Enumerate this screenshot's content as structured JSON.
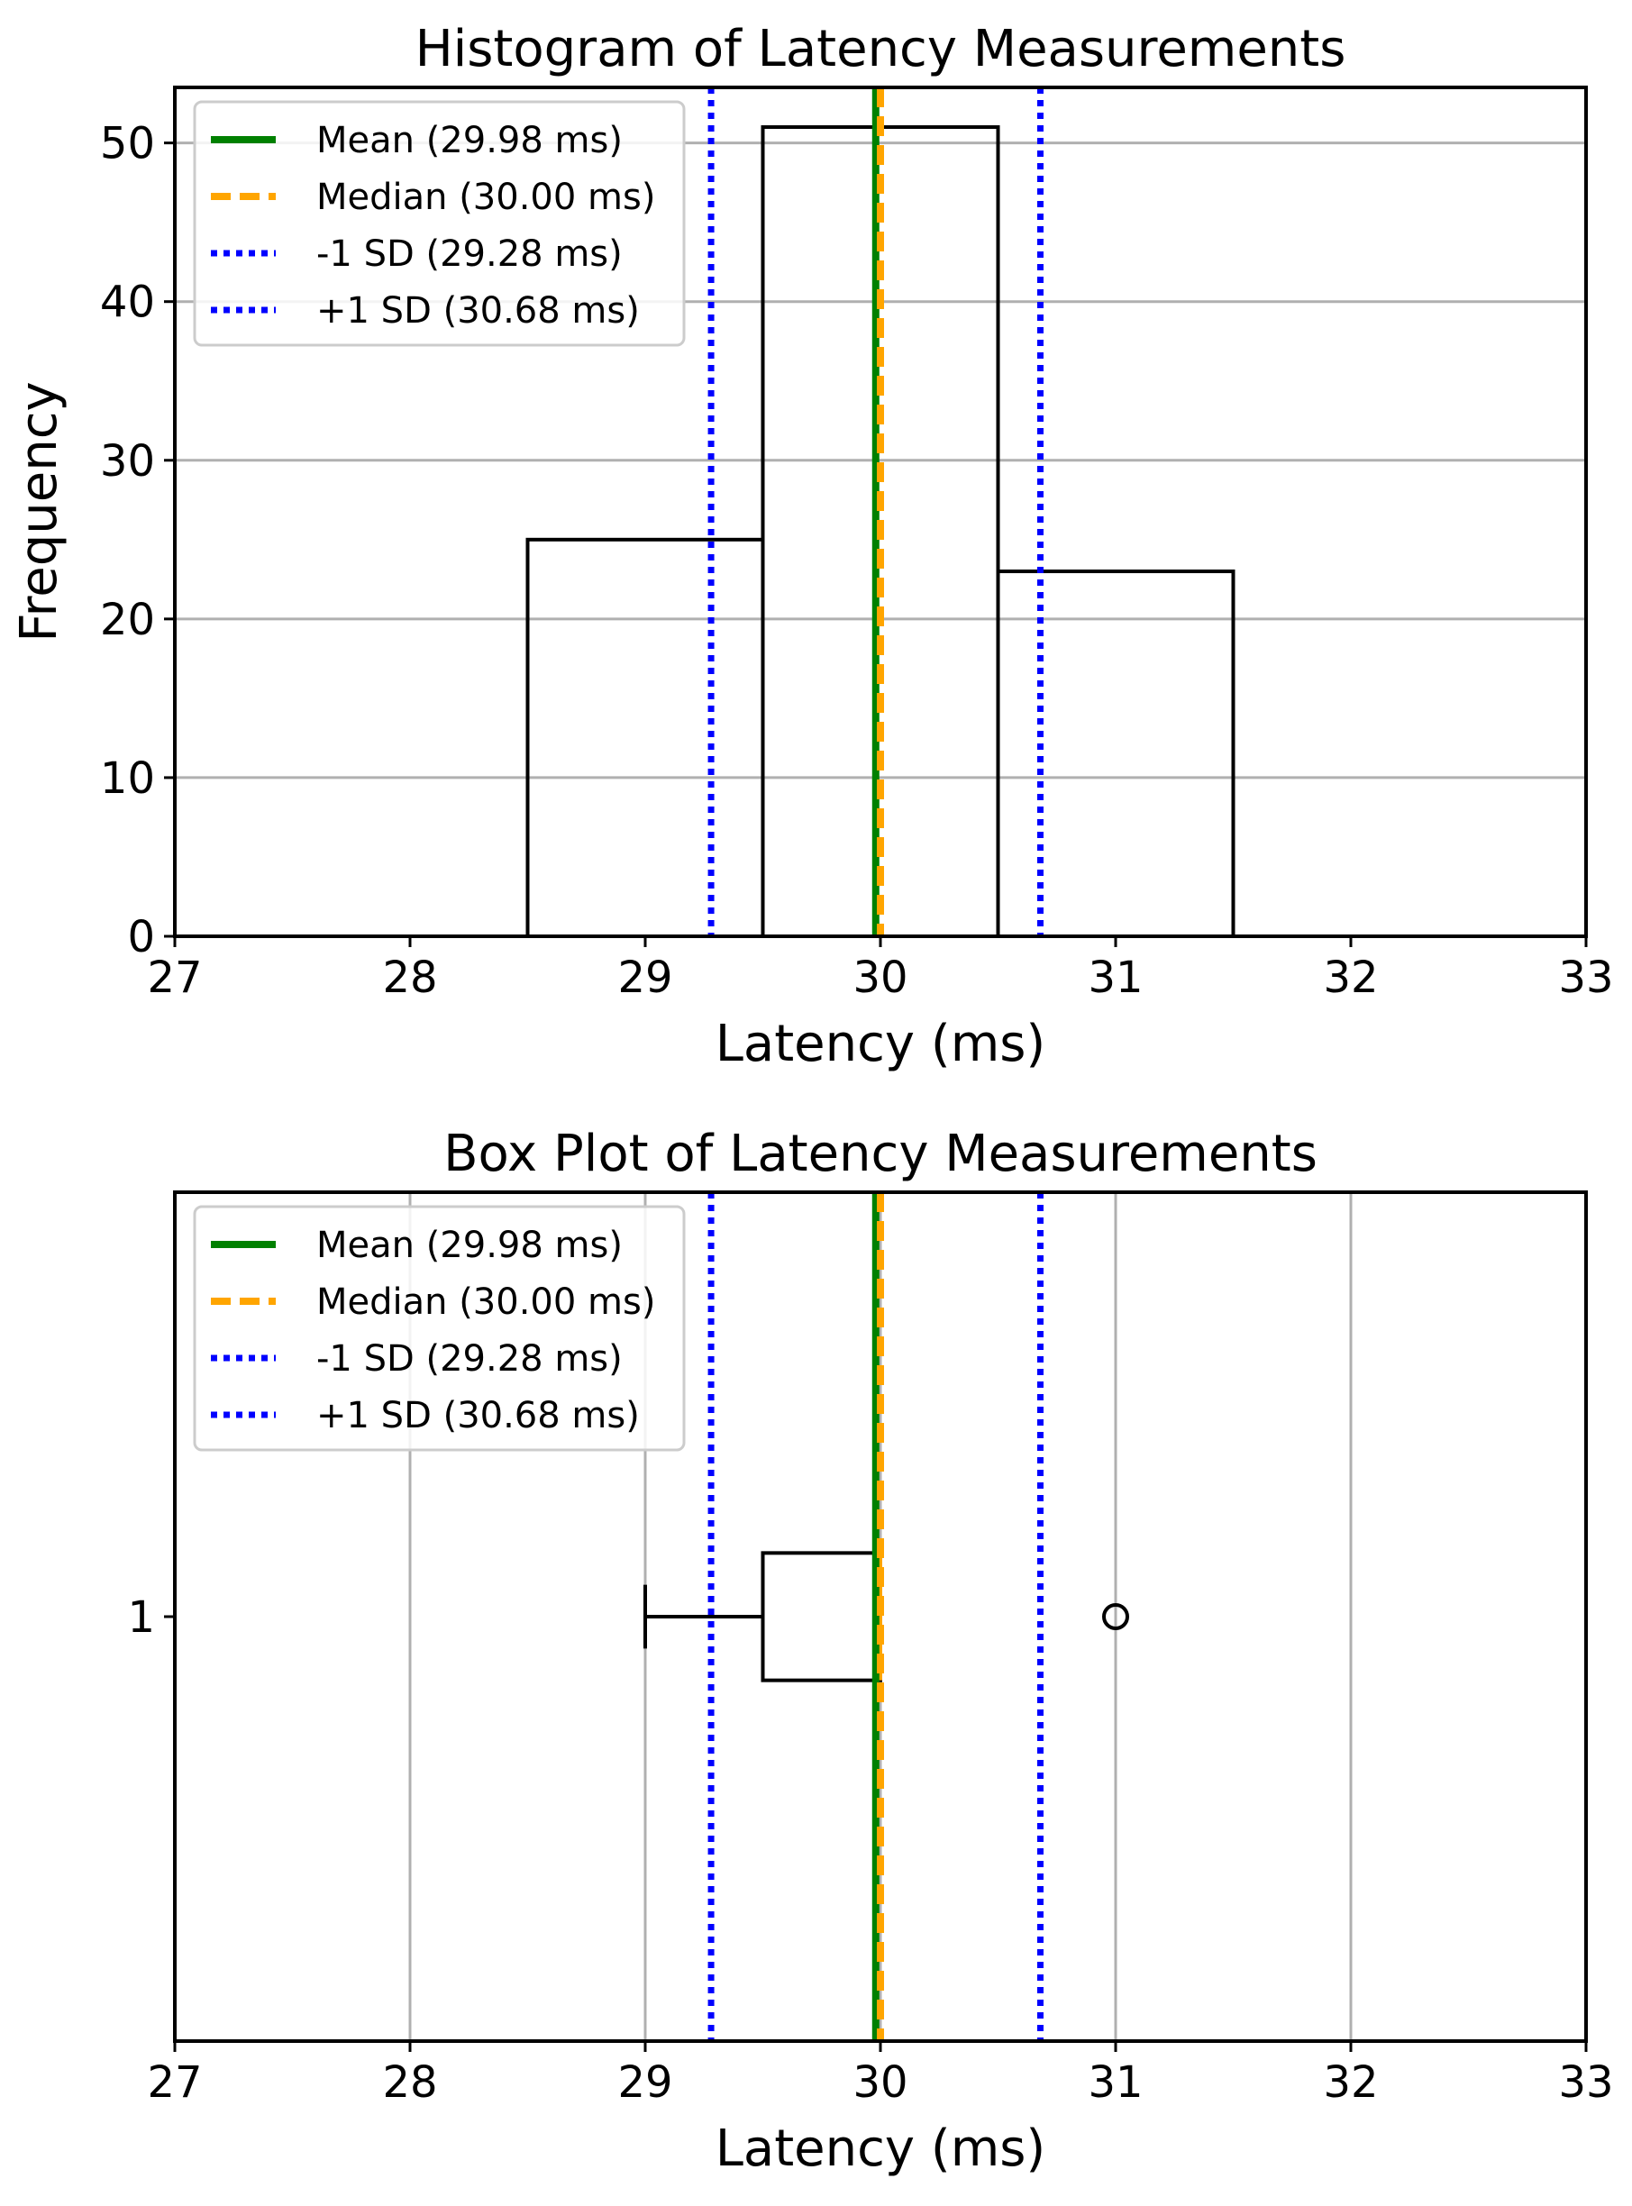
{
  "colors": {
    "mean": "#008000",
    "median": "#FFA500",
    "sd": "#0000FF",
    "grid": "#b0b0b0",
    "axis": "#000000",
    "legend_border": "#cccccc"
  },
  "legend": {
    "location": "upper-left",
    "entries": [
      {
        "label": "Mean (29.98 ms)",
        "style": "solid",
        "color_key": "mean"
      },
      {
        "label": "Median (30.00 ms)",
        "style": "dashed",
        "color_key": "median"
      },
      {
        "label": "-1 SD (29.28 ms)",
        "style": "dotted",
        "color_key": "sd"
      },
      {
        "label": "+1 SD (30.68 ms)",
        "style": "dotted",
        "color_key": "sd"
      }
    ]
  },
  "chart_data": [
    {
      "type": "bar",
      "kind": "histogram",
      "title": "Histogram of Latency Measurements",
      "xlabel": "Latency (ms)",
      "ylabel": "Frequency",
      "xlim": [
        27,
        33
      ],
      "ylim": [
        0,
        53.5
      ],
      "xticks": [
        27,
        28,
        29,
        30,
        31,
        32,
        33
      ],
      "yticks": [
        0,
        10,
        20,
        30,
        40,
        50
      ],
      "grid": "y",
      "bins": [
        {
          "x_start": 28.5,
          "x_end": 29.5,
          "count": 25
        },
        {
          "x_start": 29.5,
          "x_end": 30.5,
          "count": 51
        },
        {
          "x_start": 30.5,
          "x_end": 31.5,
          "count": 23
        }
      ],
      "reference_lines": {
        "mean": 29.98,
        "median": 30.0,
        "minus_1sd": 29.28,
        "plus_1sd": 30.68
      }
    },
    {
      "type": "boxplot",
      "orientation": "horizontal",
      "title": "Box Plot of Latency Measurements",
      "xlabel": "Latency (ms)",
      "ylabel": "",
      "xlim": [
        27,
        33
      ],
      "ylim": [
        0.5,
        1.5
      ],
      "xticks": [
        27,
        28,
        29,
        30,
        31,
        32,
        33
      ],
      "yticks": [
        1
      ],
      "grid": "x",
      "box": {
        "position": 1,
        "whisker_low": 29.0,
        "q1": 29.5,
        "median": 30.0,
        "q3": 30.0,
        "whisker_high": 30.0,
        "outliers": [
          31.0
        ]
      },
      "reference_lines": {
        "mean": 29.98,
        "median": 30.0,
        "minus_1sd": 29.28,
        "plus_1sd": 30.68
      }
    }
  ]
}
